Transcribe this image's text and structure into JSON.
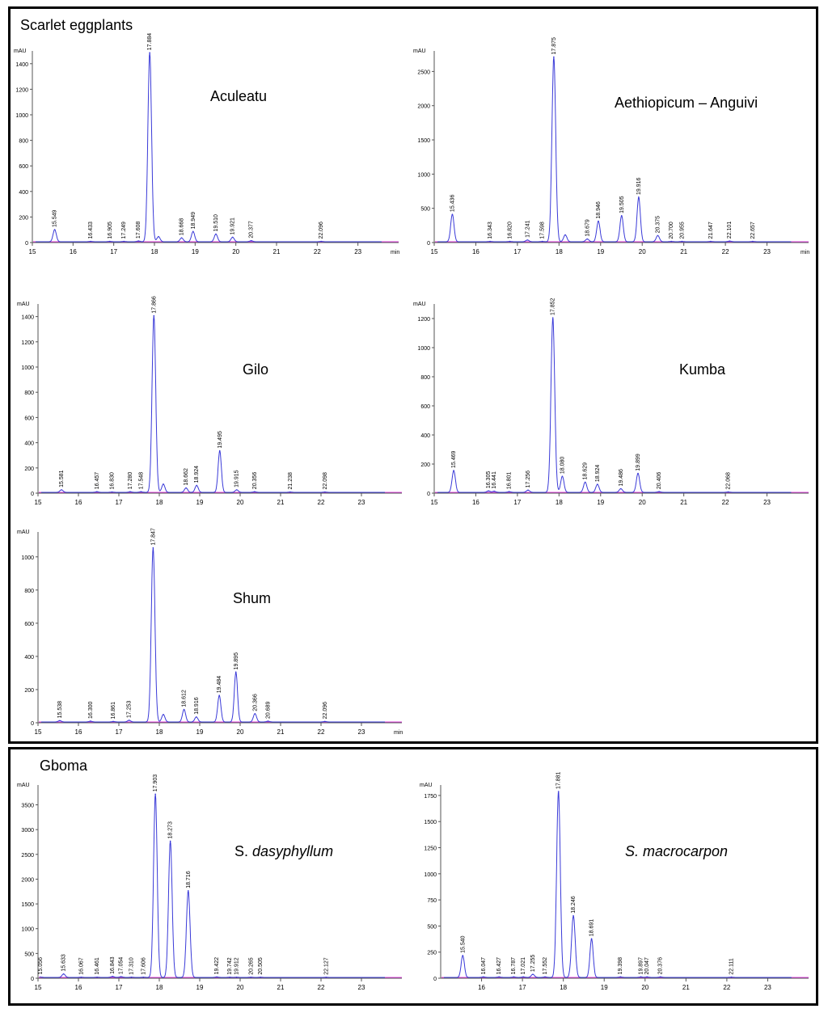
{
  "sections": {
    "scarlet": "Scarlet eggplants",
    "gboma": "Gboma"
  },
  "colors": {
    "trace": "#3a3ad8",
    "baseline": "#e040e0",
    "axis": "#555555",
    "text": "#000000"
  },
  "chart_data": [
    {
      "id": "aculeatu",
      "type": "line",
      "title": "Aculeatu",
      "title_italic": false,
      "ylabel": "mAU",
      "xlabel": "min",
      "xlim": [
        15,
        24
      ],
      "ylim": [
        0,
        1500
      ],
      "xticks": [
        15,
        16,
        17,
        18,
        19,
        20,
        21,
        22,
        23
      ],
      "yticks": [
        0,
        200,
        400,
        600,
        800,
        1000,
        1200,
        1400
      ],
      "peaks": [
        {
          "x": 15.549,
          "y": 95,
          "label": "15.549"
        },
        {
          "x": 16.433,
          "y": 3,
          "label": "16.433"
        },
        {
          "x": 16.905,
          "y": 3,
          "label": "16.905"
        },
        {
          "x": 17.249,
          "y": 3,
          "label": "17.249"
        },
        {
          "x": 17.608,
          "y": 6,
          "label": "17.608"
        },
        {
          "x": 17.884,
          "y": 1480,
          "label": "17.884"
        },
        {
          "x": 18.1,
          "y": 40,
          "label": ""
        },
        {
          "x": 18.668,
          "y": 30,
          "label": "18.668"
        },
        {
          "x": 18.949,
          "y": 80,
          "label": "18.949"
        },
        {
          "x": 19.51,
          "y": 60,
          "label": "19.510"
        },
        {
          "x": 19.921,
          "y": 35,
          "label": "19.921"
        },
        {
          "x": 20.377,
          "y": 8,
          "label": "20.377"
        },
        {
          "x": 22.096,
          "y": 3,
          "label": "22.096"
        }
      ]
    },
    {
      "id": "aethiopicum",
      "type": "line",
      "title": "Aethiopicum – Anguivi",
      "title_italic": false,
      "ylabel": "mAU",
      "xlabel": "min",
      "xlim": [
        15,
        24
      ],
      "ylim": [
        0,
        2800
      ],
      "xticks": [
        15,
        16,
        17,
        18,
        19,
        20,
        21,
        22,
        23
      ],
      "yticks": [
        0,
        500,
        1000,
        1500,
        2000,
        2500
      ],
      "peaks": [
        {
          "x": 15.436,
          "y": 400,
          "label": "15.436"
        },
        {
          "x": 16.343,
          "y": 5,
          "label": "16.343"
        },
        {
          "x": 16.82,
          "y": 5,
          "label": "16.820"
        },
        {
          "x": 17.241,
          "y": 25,
          "label": "17.241"
        },
        {
          "x": 17.598,
          "y": 5,
          "label": "17.598"
        },
        {
          "x": 17.875,
          "y": 2700,
          "label": "17.875"
        },
        {
          "x": 18.15,
          "y": 100,
          "label": ""
        },
        {
          "x": 18.679,
          "y": 40,
          "label": "18.679"
        },
        {
          "x": 18.946,
          "y": 300,
          "label": "18.946"
        },
        {
          "x": 19.505,
          "y": 380,
          "label": "19.505"
        },
        {
          "x": 19.916,
          "y": 650,
          "label": "19.916"
        },
        {
          "x": 20.375,
          "y": 90,
          "label": "20.375"
        },
        {
          "x": 20.7,
          "y": 5,
          "label": "20.700"
        },
        {
          "x": 20.955,
          "y": 5,
          "label": "20.955"
        },
        {
          "x": 21.647,
          "y": 5,
          "label": "21.647"
        },
        {
          "x": 22.101,
          "y": 10,
          "label": "22.101"
        },
        {
          "x": 22.657,
          "y": 5,
          "label": "22.657"
        }
      ]
    },
    {
      "id": "gilo",
      "type": "line",
      "title": "Gilo",
      "title_italic": false,
      "ylabel": "mAU",
      "xlabel": "",
      "xlim": [
        15,
        24
      ],
      "ylim": [
        0,
        1500
      ],
      "xticks": [
        15,
        16,
        17,
        18,
        19,
        20,
        21,
        22,
        23
      ],
      "yticks": [
        0,
        200,
        400,
        600,
        800,
        1000,
        1200,
        1400
      ],
      "peaks": [
        {
          "x": 15.581,
          "y": 20,
          "label": "15.581"
        },
        {
          "x": 16.457,
          "y": 5,
          "label": "16.457"
        },
        {
          "x": 16.83,
          "y": 3,
          "label": "16.830"
        },
        {
          "x": 17.28,
          "y": 5,
          "label": "17.280"
        },
        {
          "x": 17.548,
          "y": 5,
          "label": "17.548"
        },
        {
          "x": 17.866,
          "y": 1400,
          "label": "17.866"
        },
        {
          "x": 18.1,
          "y": 65,
          "label": ""
        },
        {
          "x": 18.662,
          "y": 35,
          "label": "18.662"
        },
        {
          "x": 18.924,
          "y": 55,
          "label": "18.924"
        },
        {
          "x": 19.495,
          "y": 330,
          "label": "19.495"
        },
        {
          "x": 19.915,
          "y": 20,
          "label": "19.915"
        },
        {
          "x": 20.356,
          "y": 5,
          "label": "20.356"
        },
        {
          "x": 21.238,
          "y": 3,
          "label": "21.238"
        },
        {
          "x": 22.098,
          "y": 3,
          "label": "22.098"
        }
      ]
    },
    {
      "id": "kumba",
      "type": "line",
      "title": "Kumba",
      "title_italic": false,
      "ylabel": "mAU",
      "xlabel": "",
      "xlim": [
        15,
        24
      ],
      "ylim": [
        0,
        1300
      ],
      "xticks": [
        15,
        16,
        17,
        18,
        19,
        20,
        21,
        22,
        23
      ],
      "yticks": [
        0,
        200,
        400,
        600,
        800,
        1000,
        1200
      ],
      "peaks": [
        {
          "x": 15.469,
          "y": 150,
          "label": "15.469"
        },
        {
          "x": 16.305,
          "y": 10,
          "label": "16.305"
        },
        {
          "x": 16.441,
          "y": 8,
          "label": "16.441"
        },
        {
          "x": 16.801,
          "y": 5,
          "label": "16.801"
        },
        {
          "x": 17.256,
          "y": 15,
          "label": "17.256"
        },
        {
          "x": 17.852,
          "y": 1200,
          "label": "17.852"
        },
        {
          "x": 18.08,
          "y": 110,
          "label": "18.080"
        },
        {
          "x": 18.629,
          "y": 70,
          "label": "18.629"
        },
        {
          "x": 18.924,
          "y": 55,
          "label": "18.924"
        },
        {
          "x": 19.486,
          "y": 25,
          "label": "19.486"
        },
        {
          "x": 19.899,
          "y": 130,
          "label": "19.899"
        },
        {
          "x": 20.406,
          "y": 5,
          "label": "20.406"
        },
        {
          "x": 22.068,
          "y": 3,
          "label": "22.068"
        }
      ]
    },
    {
      "id": "shum",
      "type": "line",
      "title": "Shum",
      "title_italic": false,
      "ylabel": "mAU",
      "xlabel": "min",
      "xlim": [
        15,
        24
      ],
      "ylim": [
        0,
        1150
      ],
      "xticks": [
        15,
        16,
        17,
        18,
        19,
        20,
        21,
        22,
        23
      ],
      "yticks": [
        0,
        200,
        400,
        600,
        800,
        1000
      ],
      "peaks": [
        {
          "x": 15.538,
          "y": 8,
          "label": "15.538"
        },
        {
          "x": 16.3,
          "y": 5,
          "label": "16.300"
        },
        {
          "x": 16.861,
          "y": 3,
          "label": "16.861"
        },
        {
          "x": 17.253,
          "y": 10,
          "label": "17.253"
        },
        {
          "x": 17.847,
          "y": 1050,
          "label": "17.847"
        },
        {
          "x": 18.1,
          "y": 45,
          "label": ""
        },
        {
          "x": 18.612,
          "y": 75,
          "label": "18.612"
        },
        {
          "x": 18.916,
          "y": 30,
          "label": "18.916"
        },
        {
          "x": 19.484,
          "y": 160,
          "label": "19.484"
        },
        {
          "x": 19.895,
          "y": 300,
          "label": "19.895"
        },
        {
          "x": 20.366,
          "y": 50,
          "label": "20.366"
        },
        {
          "x": 20.689,
          "y": 5,
          "label": "20.689"
        },
        {
          "x": 22.096,
          "y": 3,
          "label": "22.096"
        }
      ]
    },
    {
      "id": "dasyphyllum",
      "type": "line",
      "title_prefix": "S. ",
      "title_italic_part": "dasyphyllum",
      "ylabel": "mAU",
      "xlabel": "",
      "xlim": [
        15,
        24
      ],
      "ylim": [
        0,
        3900
      ],
      "xticks": [
        15,
        16,
        17,
        18,
        19,
        20,
        21,
        22,
        23
      ],
      "yticks": [
        0,
        500,
        1000,
        1500,
        2000,
        2500,
        3000,
        3500
      ],
      "peaks": [
        {
          "x": 15.056,
          "y": 10,
          "label": "15.056"
        },
        {
          "x": 15.633,
          "y": 70,
          "label": "15.633"
        },
        {
          "x": 16.067,
          "y": 5,
          "label": "16.067"
        },
        {
          "x": 16.461,
          "y": 5,
          "label": "16.461"
        },
        {
          "x": 16.843,
          "y": 20,
          "label": "16.843"
        },
        {
          "x": 17.054,
          "y": 15,
          "label": "17.054"
        },
        {
          "x": 17.31,
          "y": 5,
          "label": "17.310"
        },
        {
          "x": 17.606,
          "y": 5,
          "label": "17.606"
        },
        {
          "x": 17.903,
          "y": 3700,
          "label": "17.903"
        },
        {
          "x": 18.273,
          "y": 2750,
          "label": "18.273"
        },
        {
          "x": 18.716,
          "y": 1750,
          "label": "18.716"
        },
        {
          "x": 19.422,
          "y": 10,
          "label": "19.422"
        },
        {
          "x": 19.742,
          "y": 5,
          "label": "19.742"
        },
        {
          "x": 19.912,
          "y": 5,
          "label": "19.912"
        },
        {
          "x": 20.265,
          "y": 5,
          "label": "20.265"
        },
        {
          "x": 20.505,
          "y": 5,
          "label": "20.505"
        },
        {
          "x": 22.127,
          "y": 3,
          "label": "22.127"
        }
      ]
    },
    {
      "id": "macrocarpon",
      "type": "line",
      "title_prefix": "",
      "title_italic_part": "S. macrocarpon",
      "ylabel": "mAU",
      "xlabel": "",
      "xlim": [
        15,
        24
      ],
      "ylim": [
        0,
        1850
      ],
      "xticks": [
        16,
        17,
        18,
        19,
        20,
        21,
        22,
        23
      ],
      "yticks": [
        0,
        250,
        500,
        750,
        1000,
        1250,
        1500,
        1750
      ],
      "peaks": [
        {
          "x": 15.54,
          "y": 210,
          "label": "15.540"
        },
        {
          "x": 16.047,
          "y": 5,
          "label": "16.047"
        },
        {
          "x": 16.427,
          "y": 5,
          "label": "16.427"
        },
        {
          "x": 16.787,
          "y": 5,
          "label": "16.787"
        },
        {
          "x": 17.021,
          "y": 5,
          "label": "17.021"
        },
        {
          "x": 17.255,
          "y": 30,
          "label": "17.255"
        },
        {
          "x": 17.552,
          "y": 5,
          "label": "17.552"
        },
        {
          "x": 17.881,
          "y": 1780,
          "label": "17.881"
        },
        {
          "x": 18.246,
          "y": 590,
          "label": "18.246"
        },
        {
          "x": 18.691,
          "y": 370,
          "label": "18.691"
        },
        {
          "x": 19.398,
          "y": 5,
          "label": "19.398"
        },
        {
          "x": 19.897,
          "y": 5,
          "label": "19.897"
        },
        {
          "x": 20.047,
          "y": 5,
          "label": "20.047"
        },
        {
          "x": 20.376,
          "y": 5,
          "label": "20.376"
        },
        {
          "x": 22.111,
          "y": 3,
          "label": "22.111"
        }
      ]
    }
  ]
}
